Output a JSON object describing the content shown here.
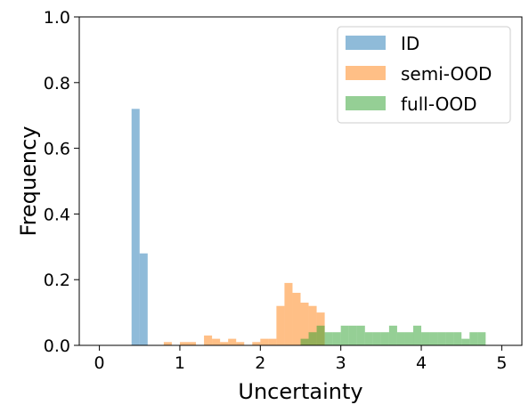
{
  "chart_data": {
    "type": "bar",
    "subtype": "histogram",
    "xlabel": "Uncertainty",
    "ylabel": "Frequency",
    "xlim": [
      -0.25,
      5.25
    ],
    "ylim": [
      0,
      1.0
    ],
    "xticks": [
      "0",
      "1",
      "2",
      "3",
      "4",
      "5"
    ],
    "xtick_values": [
      0,
      1,
      2,
      3,
      4,
      5
    ],
    "yticks": [
      "0.0",
      "0.2",
      "0.4",
      "0.6",
      "0.8",
      "1.0"
    ],
    "ytick_values": [
      0,
      0.2,
      0.4,
      0.6,
      0.8,
      1.0
    ],
    "grid": false,
    "legend_position": "top-right",
    "bin_width": 0.1,
    "series": [
      {
        "name": "ID",
        "color": "#1f77b4",
        "alpha": 0.5,
        "bins": [
          {
            "x": 0.4,
            "y": 0.72
          },
          {
            "x": 0.5,
            "y": 0.28
          }
        ]
      },
      {
        "name": "semi-OOD",
        "color": "#ff7f0e",
        "alpha": 0.5,
        "bins": [
          {
            "x": 0.8,
            "y": 0.01
          },
          {
            "x": 1.0,
            "y": 0.01
          },
          {
            "x": 1.1,
            "y": 0.01
          },
          {
            "x": 1.3,
            "y": 0.03
          },
          {
            "x": 1.4,
            "y": 0.02
          },
          {
            "x": 1.5,
            "y": 0.01
          },
          {
            "x": 1.6,
            "y": 0.02
          },
          {
            "x": 1.7,
            "y": 0.01
          },
          {
            "x": 1.9,
            "y": 0.01
          },
          {
            "x": 2.0,
            "y": 0.02
          },
          {
            "x": 2.1,
            "y": 0.02
          },
          {
            "x": 2.2,
            "y": 0.12
          },
          {
            "x": 2.3,
            "y": 0.19
          },
          {
            "x": 2.4,
            "y": 0.16
          },
          {
            "x": 2.5,
            "y": 0.13
          },
          {
            "x": 2.6,
            "y": 0.12
          },
          {
            "x": 2.7,
            "y": 0.1
          }
        ]
      },
      {
        "name": "full-OOD",
        "color": "#2ca02c",
        "alpha": 0.5,
        "bins": [
          {
            "x": 2.5,
            "y": 0.02
          },
          {
            "x": 2.6,
            "y": 0.04
          },
          {
            "x": 2.7,
            "y": 0.06
          },
          {
            "x": 2.8,
            "y": 0.04
          },
          {
            "x": 2.9,
            "y": 0.04
          },
          {
            "x": 3.0,
            "y": 0.06
          },
          {
            "x": 3.1,
            "y": 0.06
          },
          {
            "x": 3.2,
            "y": 0.06
          },
          {
            "x": 3.3,
            "y": 0.04
          },
          {
            "x": 3.4,
            "y": 0.04
          },
          {
            "x": 3.5,
            "y": 0.04
          },
          {
            "x": 3.6,
            "y": 0.06
          },
          {
            "x": 3.7,
            "y": 0.04
          },
          {
            "x": 3.8,
            "y": 0.04
          },
          {
            "x": 3.9,
            "y": 0.06
          },
          {
            "x": 4.0,
            "y": 0.04
          },
          {
            "x": 4.1,
            "y": 0.04
          },
          {
            "x": 4.2,
            "y": 0.04
          },
          {
            "x": 4.3,
            "y": 0.04
          },
          {
            "x": 4.4,
            "y": 0.04
          },
          {
            "x": 4.5,
            "y": 0.02
          },
          {
            "x": 4.6,
            "y": 0.04
          },
          {
            "x": 4.7,
            "y": 0.04
          }
        ]
      }
    ]
  }
}
